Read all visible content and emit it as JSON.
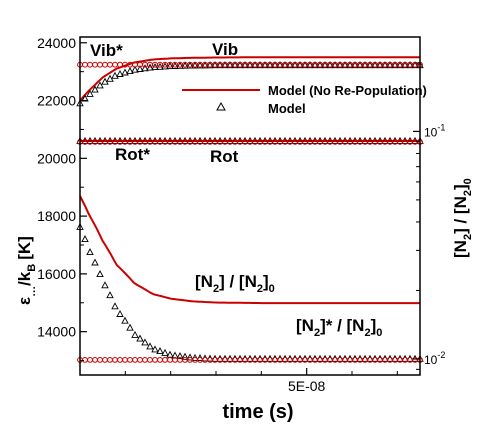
{
  "chart_data": {
    "type": "line",
    "title": "",
    "xlabel": "time (s)",
    "ylabel_left": "ε",
    "ylabel_left_sub": "…",
    "ylabel_left_rest": "/k",
    "ylabel_left_sub2": "B",
    "ylabel_left_unit": "[K]",
    "ylabel_right": "[N",
    "ylabel_right_sub": "2",
    "ylabel_right_mid": "] / [N",
    "ylabel_right_sub2": "2",
    "ylabel_right_end": "]",
    "ylabel_right_sub3": "0",
    "xlim": [
      0,
      7.5e-08
    ],
    "ylim": [
      12500,
      24200
    ],
    "ylim_right": [
      0.0085,
      0.26
    ],
    "right_scale": "log",
    "yticks": [
      "24000",
      "22000",
      "20000",
      "18000",
      "16000",
      "14000"
    ],
    "ytick_values": [
      24000,
      22000,
      20000,
      18000,
      16000,
      14000
    ],
    "xticks": [
      "5E-08"
    ],
    "xtick_values": [
      5e-08
    ],
    "rticks": [
      {
        "base": "10",
        "exp": "-1",
        "value": 0.1
      },
      {
        "base": "10",
        "exp": "-2",
        "value": 0.01
      }
    ],
    "legend": [
      {
        "label": "Model (No Re-Population)",
        "style": "line",
        "color": "#cc0000"
      },
      {
        "label": "Model",
        "style": "triangle",
        "color": "#000000"
      }
    ],
    "annotations": {
      "vib_star": "Vib*",
      "vib": "Vib",
      "rot_star": "Rot*",
      "rot": "Rot",
      "n2_a": "[N",
      "n2_a_sub": "2",
      "n2_b": "] / [N",
      "n2_b_sub": "2",
      "n2_c": "]",
      "n2_c_sub": "0",
      "n2s_a": "[N",
      "n2s_a_sub": "2",
      "n2s_b": "]* / [N",
      "n2s_b_sub": "2",
      "n2s_c": "]",
      "n2s_c_sub": "0"
    },
    "series": [
      {
        "name": "Model (No Re-Population)",
        "label": "Vib",
        "marker": "line",
        "axis": "left",
        "color": "#cc0000",
        "x": [
          0,
          2e-09,
          5e-09,
          8e-09,
          1.2e-08,
          1.6e-08,
          2e-08,
          2.5e-08,
          3e-08,
          4e-08,
          7.5e-08
        ],
        "y": [
          22000,
          22350,
          22800,
          23100,
          23320,
          23420,
          23460,
          23480,
          23490,
          23500,
          23500
        ]
      },
      {
        "name": "Model",
        "label": "Vib",
        "marker": "triangle",
        "axis": "left",
        "color": "#000000",
        "x": [
          0,
          2e-09,
          5e-09,
          8e-09,
          1.2e-08,
          1.6e-08,
          2e-08,
          2.5e-08,
          3e-08,
          4e-08,
          7.5e-08
        ],
        "y": [
          21900,
          22200,
          22600,
          22880,
          23060,
          23150,
          23190,
          23210,
          23220,
          23220,
          23220
        ]
      },
      {
        "name": "Model (No Re-Population)",
        "label": "Vib*",
        "marker": "circle",
        "axis": "left",
        "color": "#cc0000",
        "x": [
          0,
          7.5e-08
        ],
        "y": [
          23240,
          23240
        ]
      },
      {
        "name": "Model (No Re-Population)",
        "label": "Rot",
        "marker": "line",
        "axis": "left",
        "color": "#cc0000",
        "x": [
          0,
          7.5e-08
        ],
        "y": [
          20600,
          20600
        ]
      },
      {
        "name": "Model",
        "label": "Rot",
        "marker": "triangle",
        "axis": "left",
        "color": "#000000",
        "x": [
          0,
          7.5e-08
        ],
        "y": [
          20600,
          20600
        ]
      },
      {
        "name": "Model (No Re-Population)",
        "label": "Rot*",
        "marker": "circle",
        "axis": "left",
        "color": "#cc0000",
        "x": [
          0,
          7.5e-08
        ],
        "y": [
          20570,
          20570
        ]
      },
      {
        "name": "Model (No Re-Population)",
        "label": "[N2] / [N2]0",
        "marker": "line",
        "axis": "right",
        "color": "#cc0000",
        "x": [
          0,
          2e-09,
          5e-09,
          8e-09,
          1.2e-08,
          1.6e-08,
          2e-08,
          2.5e-08,
          3e-08,
          4e-08,
          7.5e-08
        ],
        "y": [
          0.052,
          0.043,
          0.033,
          0.026,
          0.0215,
          0.0193,
          0.0184,
          0.0179,
          0.0177,
          0.0176,
          0.0176
        ]
      },
      {
        "name": "Model",
        "label": "[N2] / [N2]0",
        "marker": "triangle",
        "axis": "right",
        "color": "#000000",
        "x": [
          0,
          2e-09,
          5e-09,
          8e-09,
          1.2e-08,
          1.6e-08,
          2e-08,
          2.5e-08,
          3e-08,
          4e-08,
          7.5e-08
        ],
        "y": [
          0.038,
          0.03,
          0.022,
          0.0165,
          0.0128,
          0.0111,
          0.0104,
          0.0101,
          0.01,
          0.01,
          0.01
        ]
      },
      {
        "name": "Model (No Re-Population)",
        "label": "[N2]* / [N2]0",
        "marker": "circle",
        "axis": "right",
        "color": "#cc0000",
        "x": [
          0,
          7.5e-08
        ],
        "y": [
          0.0099,
          0.0099
        ]
      }
    ]
  }
}
